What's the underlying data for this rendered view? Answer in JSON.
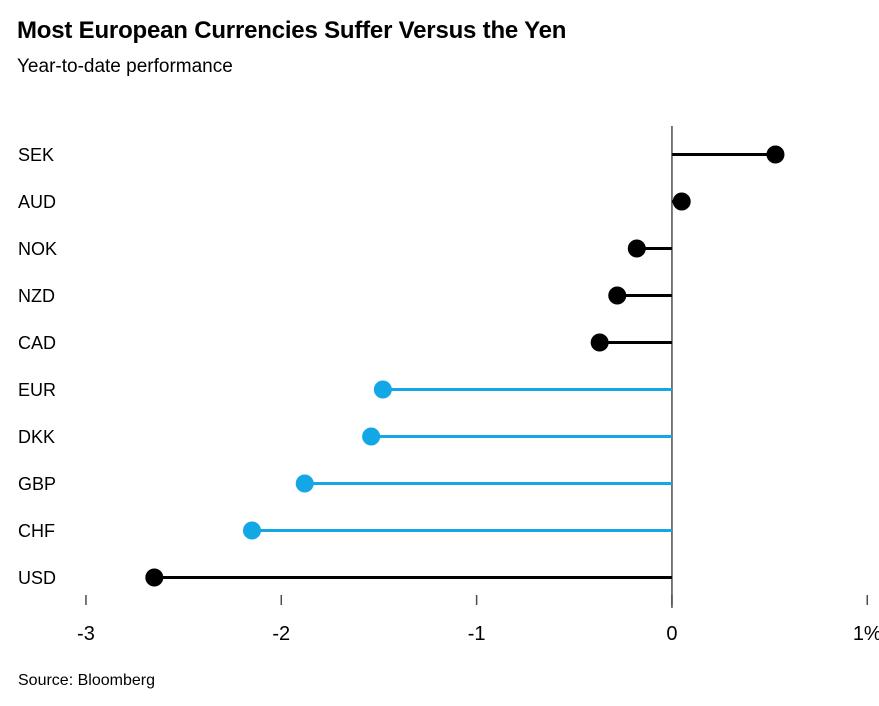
{
  "header": {
    "title": "Most European Currencies Suffer Versus the Yen",
    "subtitle": "Year-to-date performance"
  },
  "footer": {
    "source": "Source: Bloomberg"
  },
  "chart_data": {
    "type": "bar",
    "variant": "horizontal-lollipop",
    "title": "Most European Currencies Suffer Versus the Yen",
    "subtitle": "Year-to-date performance",
    "xlabel": "",
    "ylabel": "",
    "unit": "%",
    "categories": [
      "SEK",
      "AUD",
      "NOK",
      "NZD",
      "CAD",
      "EUR",
      "DKK",
      "GBP",
      "CHF",
      "USD"
    ],
    "values": [
      0.53,
      0.05,
      -0.18,
      -0.28,
      -0.37,
      -1.48,
      -1.54,
      -1.88,
      -2.15,
      -2.65
    ],
    "point_colors": [
      "#000000",
      "#000000",
      "#000000",
      "#000000",
      "#000000",
      "#14a7e6",
      "#14a7e6",
      "#14a7e6",
      "#14a7e6",
      "#000000"
    ],
    "x_ticks": [
      -3,
      -2,
      -1,
      0,
      1
    ],
    "x_tick_labels": [
      "-3",
      "-2",
      "-1",
      "0",
      "1%"
    ],
    "xlim": [
      -3.44,
      1.06
    ],
    "grid": false,
    "legend": null,
    "zero_baseline": true,
    "colors": {
      "black_series": "#000000",
      "blue_series": "#14a7e6",
      "axis": "#4d4d4d",
      "text": "#000000",
      "background": "#ffffff"
    }
  }
}
